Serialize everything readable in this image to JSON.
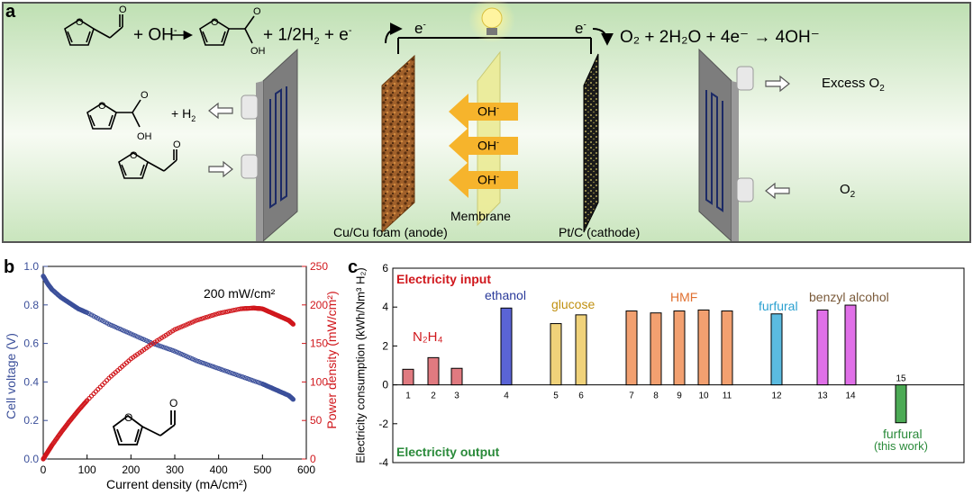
{
  "panel_a": {
    "label": "a",
    "equation_anode_left": "+ OH",
    "equation_anode_right": "+ 1/2H",
    "equation_anode_tail": "+ e",
    "equation_cathode": "O₂ + 2H₂O + 4e⁻ → 4OH⁻",
    "electron_left": "e",
    "electron_right": "e",
    "product_h2": "+ H",
    "hydroxide_labels": [
      "OH",
      "OH",
      "OH"
    ],
    "excess_o2": "Excess O",
    "o2_in": "O",
    "anode_caption": "Cu/Cu foam (anode)",
    "membrane_caption": "Membrane",
    "cathode_caption": "Pt/C (cathode)",
    "colors": {
      "copper": "#a0602a",
      "membrane": "#ecec9a",
      "arrow": "#f6b42c",
      "carbon": "#1a1a1a",
      "plate": "#7d7d7d",
      "channel": "#1c2a66"
    }
  },
  "panel_b": {
    "label": "b",
    "annotation": "200 mW/cm²",
    "chart_data": {
      "type": "scatter",
      "xlabel": "Current density (mA/cm²)",
      "ylabel_left": "Cell voltage (V)",
      "ylabel_right": "Power density (mW/cm²)",
      "xlim": [
        0,
        600
      ],
      "ylim_left": [
        0.0,
        1.0
      ],
      "ylim_right": [
        0,
        250
      ],
      "x_ticks": [
        "0",
        "100",
        "200",
        "300",
        "400",
        "500",
        "600"
      ],
      "y_ticks_left": [
        "0.0",
        "0.2",
        "0.4",
        "0.6",
        "0.8",
        "1.0"
      ],
      "y_ticks_right": [
        "0",
        "50",
        "100",
        "150",
        "200",
        "250"
      ],
      "series": [
        {
          "axis": "left",
          "color": "#3b4f9a",
          "x": [
            0,
            10,
            20,
            40,
            60,
            80,
            100,
            150,
            200,
            250,
            300,
            350,
            400,
            450,
            500,
            520,
            540,
            560,
            570
          ],
          "y": [
            0.95,
            0.91,
            0.88,
            0.84,
            0.81,
            0.78,
            0.76,
            0.7,
            0.65,
            0.6,
            0.56,
            0.51,
            0.47,
            0.43,
            0.39,
            0.37,
            0.35,
            0.33,
            0.31
          ]
        },
        {
          "axis": "right",
          "color": "#d0171c",
          "x": [
            0,
            10,
            20,
            40,
            60,
            80,
            100,
            150,
            200,
            250,
            300,
            350,
            400,
            450,
            480,
            500,
            520,
            540,
            560,
            570
          ],
          "y": [
            0,
            9,
            18,
            34,
            49,
            63,
            76,
            105,
            130,
            150,
            168,
            180,
            189,
            195,
            196,
            195,
            190,
            185,
            180,
            175
          ]
        }
      ]
    }
  },
  "panel_c": {
    "label": "c",
    "electricity_input": "Electricity input",
    "electricity_output": "Electricity output",
    "chart_data": {
      "type": "bar",
      "ylabel": "Electricity consumption (kWh/Nm³ H₂)",
      "ylim": [
        -4,
        6
      ],
      "y_ticks": [
        "-4",
        "-2",
        "0",
        "2",
        "4",
        "6"
      ],
      "categories": [
        "1",
        "2",
        "3",
        "4",
        "5",
        "6",
        "7",
        "8",
        "9",
        "10",
        "11",
        "12",
        "13",
        "14",
        "15"
      ],
      "values": [
        0.8,
        1.4,
        0.85,
        3.95,
        3.15,
        3.6,
        3.8,
        3.7,
        3.8,
        3.85,
        3.8,
        3.65,
        3.85,
        4.1,
        -1.95
      ],
      "bar_colors": [
        "#e07a80",
        "#e07a80",
        "#e07a80",
        "#5a64d6",
        "#f0d27a",
        "#f0d27a",
        "#f2a070",
        "#f2a070",
        "#f2a070",
        "#f2a070",
        "#f2a070",
        "#5bbbe0",
        "#e070e8",
        "#e070e8",
        "#4caa55"
      ],
      "group_labels": [
        {
          "text": "N₂H₄",
          "color": "#d0171c"
        },
        {
          "text": "ethanol",
          "color": "#2a3a9a"
        },
        {
          "text": "glucose",
          "color": "#c09010"
        },
        {
          "text": "HMF",
          "color": "#e07030"
        },
        {
          "text": "furfural",
          "color": "#2aa0d0"
        },
        {
          "text": "benzyl alcohol",
          "color": "#7a5a3a"
        },
        {
          "text": "furfural",
          "color": "#2a8a3a"
        },
        {
          "text": "(this work)",
          "color": "#2a8a3a"
        }
      ]
    }
  }
}
